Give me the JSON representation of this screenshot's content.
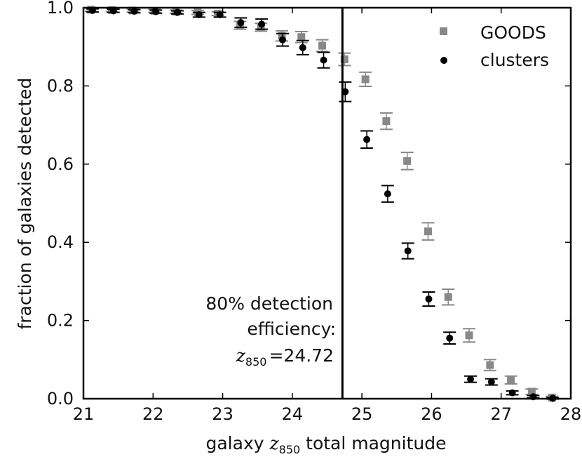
{
  "chart_data": {
    "type": "scatter",
    "xlabel_pre": "galaxy ",
    "xlabel_var": "z",
    "xlabel_sub": "850",
    "xlabel_post": " total magnitude",
    "ylabel": "fraction of galaxies detected",
    "xlim": [
      21,
      28
    ],
    "ylim": [
      0.0,
      1.0
    ],
    "xticks": [
      21,
      22,
      23,
      24,
      25,
      26,
      27,
      28
    ],
    "xtick_labels": [
      "21",
      "22",
      "23",
      "24",
      "25",
      "26",
      "27",
      "28"
    ],
    "yticks": [
      0.0,
      0.2,
      0.4,
      0.6,
      0.8,
      1.0
    ],
    "ytick_labels": [
      "0.0",
      "0.2",
      "0.4",
      "0.6",
      "0.8",
      "1.0"
    ],
    "vline_x": 24.72,
    "annotation": {
      "line1": "80% detection",
      "line2": "efficiency:",
      "line3_var": "z",
      "line3_sub": "850",
      "line3_rest": "=24.72"
    },
    "legend_position": "top-right",
    "series": [
      {
        "name": "GOODS",
        "marker": "square",
        "color": "#888888",
        "x": [
          21.11,
          21.41,
          21.71,
          22.02,
          22.33,
          22.64,
          22.93,
          23.25,
          23.55,
          23.85,
          24.13,
          24.43,
          24.75,
          25.05,
          25.35,
          25.65,
          25.95,
          26.24,
          26.54,
          26.84,
          27.14,
          27.44,
          27.73
        ],
        "y": [
          0.995,
          0.994,
          0.993,
          0.992,
          0.99,
          0.988,
          0.985,
          0.955,
          0.95,
          0.928,
          0.925,
          0.903,
          0.868,
          0.817,
          0.71,
          0.608,
          0.428,
          0.26,
          0.162,
          0.086,
          0.048,
          0.018,
          0.003
        ],
        "err": [
          0.004,
          0.004,
          0.004,
          0.004,
          0.004,
          0.005,
          0.005,
          0.01,
          0.01,
          0.013,
          0.014,
          0.015,
          0.016,
          0.018,
          0.021,
          0.022,
          0.022,
          0.02,
          0.017,
          0.014,
          0.01,
          0.007,
          0.003
        ]
      },
      {
        "name": "clusters",
        "marker": "circle",
        "color": "#000000",
        "x": [
          21.13,
          21.43,
          21.73,
          22.04,
          22.35,
          22.66,
          22.96,
          23.26,
          23.56,
          23.86,
          24.15,
          24.45,
          24.76,
          25.07,
          25.37,
          25.66,
          25.96,
          26.26,
          26.56,
          26.86,
          27.16,
          27.46,
          27.74
        ],
        "y": [
          0.993,
          0.992,
          0.991,
          0.99,
          0.988,
          0.982,
          0.982,
          0.962,
          0.958,
          0.918,
          0.898,
          0.866,
          0.785,
          0.663,
          0.524,
          0.378,
          0.255,
          0.155,
          0.05,
          0.043,
          0.015,
          0.005,
          0.001
        ],
        "err": [
          0.004,
          0.004,
          0.004,
          0.004,
          0.004,
          0.006,
          0.006,
          0.012,
          0.013,
          0.016,
          0.018,
          0.02,
          0.025,
          0.022,
          0.021,
          0.02,
          0.018,
          0.015,
          0.008,
          0.008,
          0.005,
          0.003,
          0.002
        ]
      }
    ]
  }
}
